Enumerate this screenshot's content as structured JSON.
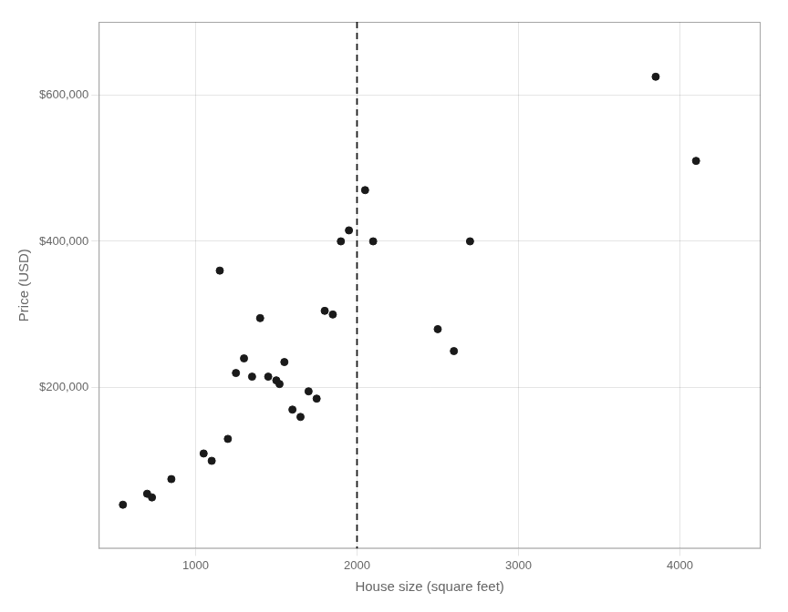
{
  "chart_data": {
    "type": "scatter",
    "x_label": "House size (square feet)",
    "y_label": "Price (USD)",
    "x": [
      550,
      700,
      730,
      850,
      1050,
      1100,
      1150,
      1200,
      1250,
      1300,
      1350,
      1400,
      1450,
      1500,
      1520,
      1550,
      1600,
      1650,
      1700,
      1750,
      1800,
      1850,
      1900,
      1950,
      2050,
      2100,
      2500,
      2600,
      2700,
      3850,
      4100
    ],
    "values": [
      40000,
      55000,
      50000,
      75000,
      110000,
      100000,
      360000,
      130000,
      220000,
      240000,
      215000,
      295000,
      215000,
      210000,
      205000,
      235000,
      170000,
      160000,
      195000,
      185000,
      305000,
      300000,
      400000,
      415000,
      470000,
      400000,
      280000,
      250000,
      400000,
      625000,
      510000
    ],
    "color": "#1a1a1a",
    "xlim": [
      400,
      4500
    ],
    "ylim": [
      -20000,
      700000
    ],
    "xticks": [
      1000,
      2000,
      3000,
      4000
    ],
    "yticks": [
      {
        "value": 200000,
        "label": "$200,000"
      },
      {
        "value": 400000,
        "label": "$400,000"
      },
      {
        "value": 600000,
        "label": "$600,000"
      }
    ],
    "vline": {
      "x": 2000,
      "color": "#1a1a1a",
      "line_style": "dashed"
    },
    "grid": true,
    "legend": false
  }
}
